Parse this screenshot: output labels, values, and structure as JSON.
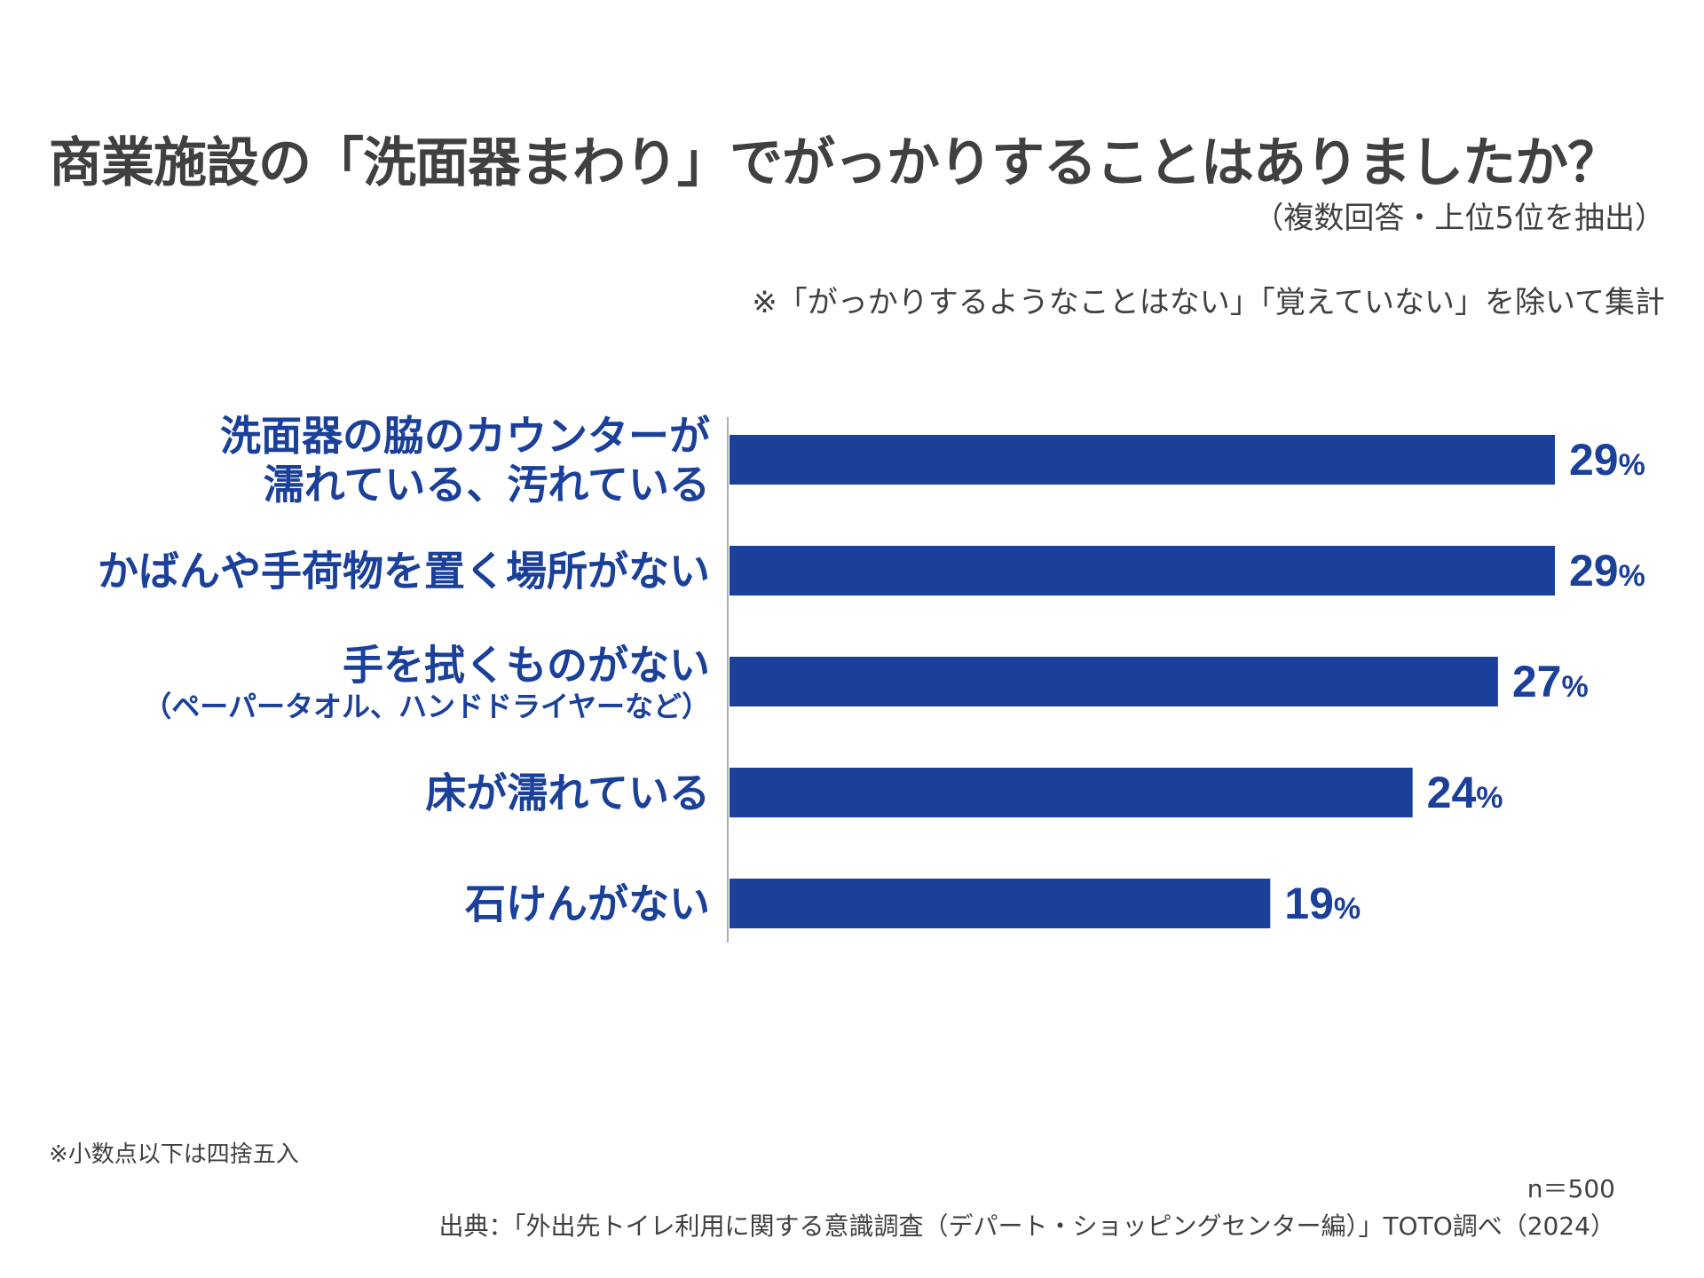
{
  "chart_data": {
    "type": "bar",
    "orientation": "horizontal",
    "title": "商業施設の「洗面器まわり」でがっかりすることはありましたか？",
    "subtitle": "（複数回答・上位5位を抽出）",
    "note": "※「がっかりするようなことはない」「覚えていない」を除いて集計",
    "categories": [
      {
        "lines": [
          "洗面器の脇のカウンターが",
          "濡れている、汚れている"
        ],
        "sub": ""
      },
      {
        "lines": [
          "かばんや手荷物を置く場所がない"
        ],
        "sub": ""
      },
      {
        "lines": [
          "手を拭くものがない"
        ],
        "sub": "（ペーパータオル、ハンドドライヤーなど）"
      },
      {
        "lines": [
          "床が濡れている"
        ],
        "sub": ""
      },
      {
        "lines": [
          "石けんがない"
        ],
        "sub": ""
      }
    ],
    "values": [
      29,
      29,
      27,
      24,
      19
    ],
    "unit": "%",
    "xlim": [
      0,
      29
    ],
    "grid": false,
    "legend": "none",
    "bar_color": "#1a4099"
  },
  "footer": {
    "rounding_note": "※小数点以下は四捨五入",
    "sample_size": "n＝500",
    "source": "出典：「外出先トイレ利用に関する意識調査（デパート・ショッピングセンター編）」TOTO調べ（2024）"
  }
}
